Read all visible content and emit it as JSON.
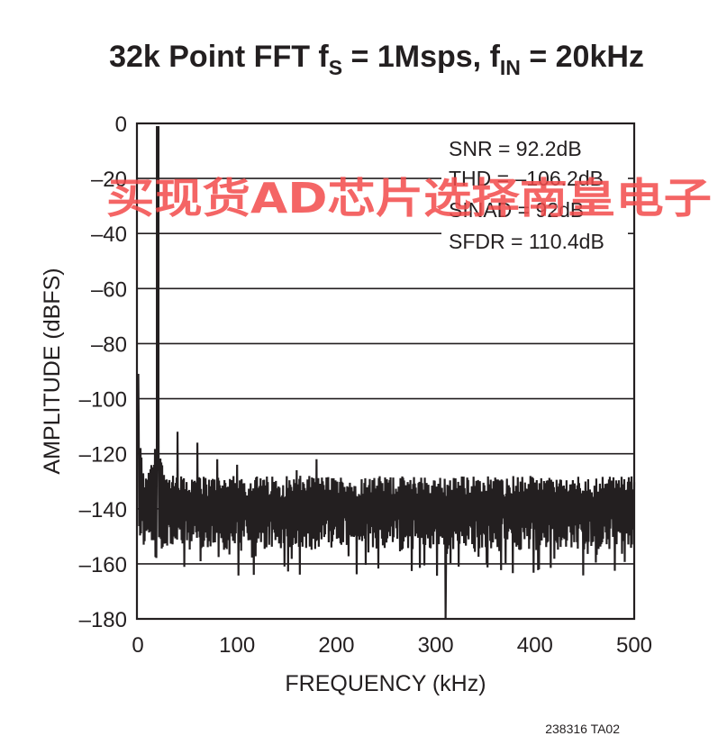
{
  "chart_data": {
    "type": "line",
    "title": {
      "main": "32k Point FFT f",
      "sub1": "S",
      "mid": " = 1Msps, f",
      "sub2": "IN",
      "end": " = 20kHz"
    },
    "xlabel": "FREQUENCY (kHz)",
    "ylabel": "AMPLITUDE (dBFS)",
    "xlim": [
      0,
      500
    ],
    "ylim": [
      -180,
      0
    ],
    "x_ticks": [
      0,
      100,
      200,
      300,
      400,
      500
    ],
    "x_tick_labels": [
      "0",
      "100",
      "200",
      "300",
      "400",
      "500"
    ],
    "y_ticks": [
      0,
      -20,
      -40,
      -60,
      -80,
      -100,
      -120,
      -140,
      -160,
      -180
    ],
    "y_tick_labels": [
      "0",
      "–20",
      "–40",
      "–60",
      "–80",
      "–100",
      "–120",
      "–140",
      "–160",
      "–180"
    ],
    "grid": "horizontal",
    "series": [
      {
        "color": "#231f20",
        "fundamental": {
          "x": 20,
          "y": -1
        },
        "spurs": [
          {
            "x": 0.5,
            "y": -91
          },
          {
            "x": 40,
            "y": -112
          },
          {
            "x": 60,
            "y": -116
          },
          {
            "x": 80,
            "y": -122
          },
          {
            "x": 100,
            "y": -124
          },
          {
            "x": 160,
            "y": -126
          },
          {
            "x": 180,
            "y": -122
          },
          {
            "x": 310,
            "y": -180
          }
        ],
        "noise_floor": {
          "median": -140,
          "peak_high": -128,
          "peak_low": -165
        }
      }
    ],
    "annotations": [
      "SNR = 92.2dB",
      "THD = –106.2dB",
      "SINAD = 92dB",
      "SFDR = 110.4dB"
    ],
    "figure_code": "238316 TA02"
  },
  "watermark": "买现货AD芯片选择南皇电子"
}
